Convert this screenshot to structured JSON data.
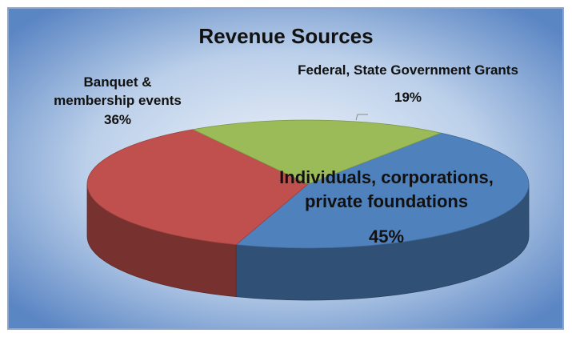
{
  "chart_data": {
    "type": "pie",
    "title": "Revenue Sources",
    "categories": [
      "Individuals, corporations, private foundations",
      "Banquet & membership events",
      "Federal, State Government Grants"
    ],
    "values": [
      45,
      36,
      19
    ],
    "value_labels": [
      "45%",
      "36%",
      "19%"
    ],
    "colors": [
      "#4f81bd",
      "#c0504d",
      "#9bbb59"
    ]
  }
}
